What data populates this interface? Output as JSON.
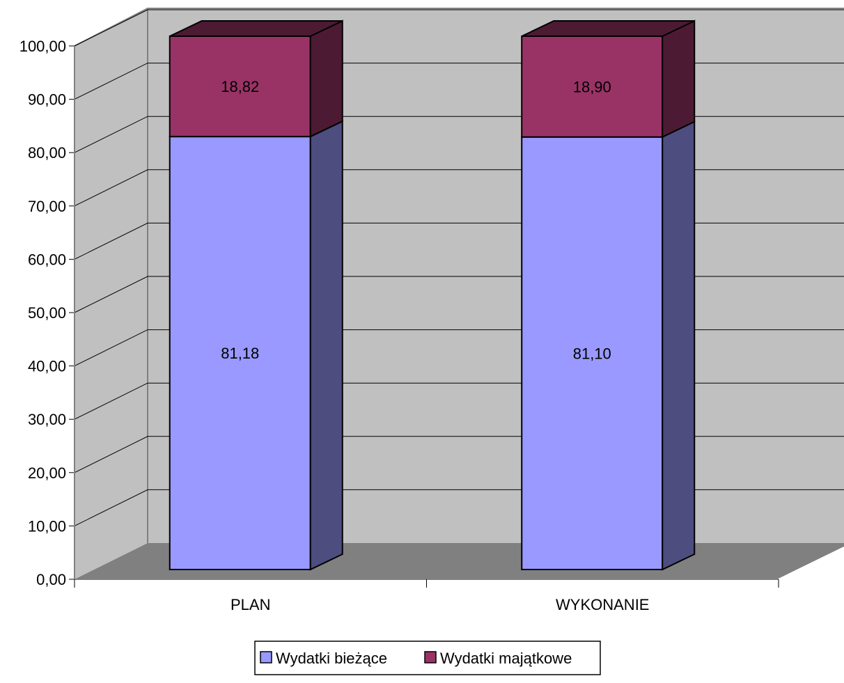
{
  "chart_data": {
    "type": "bar",
    "stacked": true,
    "three_d": true,
    "categories": [
      "PLAN",
      "WYKONANIE"
    ],
    "series": [
      {
        "name": "Wydatki bieżące",
        "values": [
          81.18,
          81.1
        ],
        "labels": [
          "81,18",
          "81,10"
        ],
        "color": "#9999ff",
        "side_color": "#4d4d80",
        "top_color": "#4d4d80"
      },
      {
        "name": "Wydatki majątkowe",
        "values": [
          18.82,
          18.9
        ],
        "labels": [
          "18,82",
          "18,90"
        ],
        "color": "#993366",
        "side_color": "#4d1a33",
        "top_color": "#4d1a33"
      }
    ],
    "yticks": [
      "0,00",
      "10,00",
      "20,00",
      "30,00",
      "40,00",
      "50,00",
      "60,00",
      "70,00",
      "80,00",
      "90,00",
      "100,00"
    ],
    "ylim": [
      0,
      100
    ],
    "grid": true,
    "legend": "bottom-center",
    "colors": {
      "wall": "#c0c0c0",
      "floor": "#808080"
    }
  }
}
